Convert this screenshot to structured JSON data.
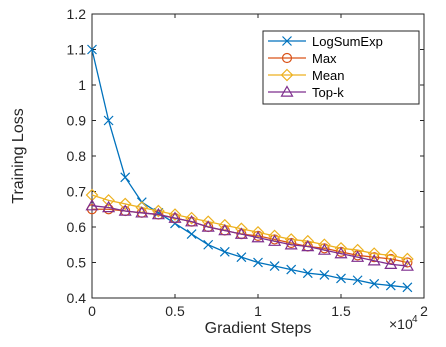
{
  "chart_data": {
    "type": "line",
    "xlabel": "Gradient Steps",
    "ylabel": "Training Loss",
    "x_exponent_label": "×10",
    "x_exponent_power": "4",
    "xlim": [
      0,
      20000
    ],
    "ylim": [
      0.4,
      1.2
    ],
    "x_ticks": [
      0,
      5000,
      10000,
      15000,
      20000
    ],
    "x_tick_labels": [
      "0",
      "0.5",
      "1",
      "1.5",
      "2"
    ],
    "y_ticks": [
      0.4,
      0.5,
      0.6,
      0.7,
      0.8,
      0.9,
      1.0,
      1.1,
      1.2
    ],
    "y_tick_labels": [
      "0.4",
      "0.5",
      "0.6",
      "0.7",
      "0.8",
      "0.9",
      "1",
      "1.1",
      "1.2"
    ],
    "grid": false,
    "legend_position": "top-right",
    "x": [
      0,
      1000,
      2000,
      3000,
      4000,
      5000,
      6000,
      7000,
      8000,
      9000,
      10000,
      11000,
      12000,
      13000,
      14000,
      15000,
      16000,
      17000,
      18000,
      19000
    ],
    "series": [
      {
        "name": "LogSumExp",
        "color": "#0072BD",
        "marker": "x",
        "values": [
          1.1,
          0.9,
          0.74,
          0.67,
          0.64,
          0.61,
          0.58,
          0.55,
          0.53,
          0.515,
          0.5,
          0.49,
          0.48,
          0.47,
          0.465,
          0.455,
          0.45,
          0.44,
          0.435,
          0.43
        ]
      },
      {
        "name": "Max",
        "color": "#D95319",
        "marker": "circle",
        "values": [
          0.65,
          0.65,
          0.645,
          0.64,
          0.635,
          0.625,
          0.615,
          0.6,
          0.59,
          0.58,
          0.575,
          0.565,
          0.555,
          0.545,
          0.54,
          0.53,
          0.52,
          0.515,
          0.51,
          0.5
        ]
      },
      {
        "name": "Mean",
        "color": "#EDB120",
        "marker": "diamond",
        "values": [
          0.69,
          0.675,
          0.665,
          0.655,
          0.645,
          0.635,
          0.625,
          0.615,
          0.605,
          0.595,
          0.585,
          0.575,
          0.565,
          0.56,
          0.55,
          0.54,
          0.535,
          0.525,
          0.52,
          0.51
        ]
      },
      {
        "name": "Top-k",
        "color": "#7E2F8E",
        "marker": "triangle",
        "values": [
          0.66,
          0.655,
          0.645,
          0.64,
          0.635,
          0.625,
          0.615,
          0.6,
          0.59,
          0.58,
          0.57,
          0.56,
          0.55,
          0.545,
          0.535,
          0.525,
          0.515,
          0.505,
          0.495,
          0.49
        ]
      }
    ]
  }
}
